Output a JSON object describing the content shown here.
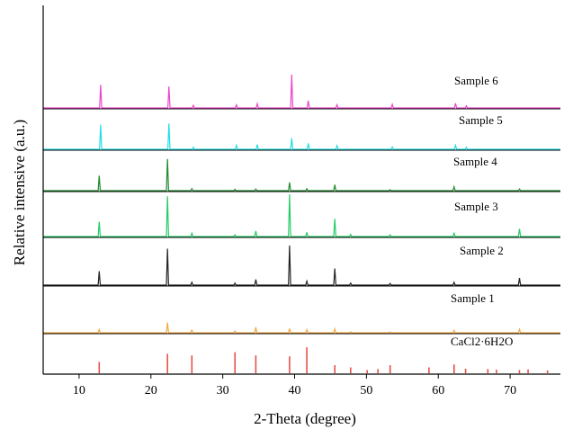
{
  "chart_data": {
    "type": "line",
    "title": "",
    "xlabel": "2-Theta (degree)",
    "ylabel": "Relative intensive (a.u.)",
    "xlim": [
      5,
      77
    ],
    "xticks": [
      10,
      20,
      30,
      40,
      50,
      60,
      70
    ],
    "grid": false,
    "style": "stacked offset diffraction patterns, spikes on flat baselines",
    "series": [
      {
        "name": "CaCl2·6H2O",
        "color": "#e8504a",
        "render": "sticks",
        "peaks": [
          [
            12.8,
            0.35
          ],
          [
            22.3,
            0.6
          ],
          [
            25.7,
            0.55
          ],
          [
            31.7,
            0.65
          ],
          [
            34.6,
            0.55
          ],
          [
            39.3,
            0.52
          ],
          [
            41.7,
            0.8
          ],
          [
            45.6,
            0.25
          ],
          [
            47.8,
            0.18
          ],
          [
            50.1,
            0.1
          ],
          [
            51.6,
            0.13
          ],
          [
            53.3,
            0.25
          ],
          [
            58.7,
            0.18
          ],
          [
            62.2,
            0.27
          ],
          [
            63.8,
            0.14
          ],
          [
            66.9,
            0.13
          ],
          [
            68.1,
            0.11
          ],
          [
            71.3,
            0.1
          ],
          [
            72.5,
            0.12
          ],
          [
            75.2,
            0.09
          ]
        ]
      },
      {
        "name": "Sample 1",
        "color": "#f5a742",
        "render": "trace",
        "peaks": [
          [
            12.8,
            0.2
          ],
          [
            22.3,
            0.6
          ],
          [
            25.7,
            0.15
          ],
          [
            31.7,
            0.1
          ],
          [
            34.6,
            0.32
          ],
          [
            39.3,
            0.25
          ],
          [
            41.7,
            0.18
          ],
          [
            45.6,
            0.22
          ],
          [
            47.8,
            0.06
          ],
          [
            53.3,
            0.05
          ],
          [
            62.2,
            0.14
          ],
          [
            71.3,
            0.2
          ]
        ]
      },
      {
        "name": "Sample 2",
        "color": "#222222",
        "render": "trace",
        "peaks": [
          [
            12.8,
            0.35
          ],
          [
            22.3,
            0.92
          ],
          [
            25.7,
            0.07
          ],
          [
            31.7,
            0.05
          ],
          [
            34.6,
            0.14
          ],
          [
            39.3,
            1.0
          ],
          [
            41.7,
            0.1
          ],
          [
            45.6,
            0.42
          ],
          [
            47.8,
            0.05
          ],
          [
            53.3,
            0.04
          ],
          [
            62.2,
            0.07
          ],
          [
            71.3,
            0.18
          ]
        ]
      },
      {
        "name": "Sample 3",
        "color": "#22cc66",
        "render": "trace",
        "peaks": [
          [
            12.8,
            0.35
          ],
          [
            22.3,
            0.95
          ],
          [
            25.7,
            0.08
          ],
          [
            31.7,
            0.04
          ],
          [
            34.6,
            0.13
          ],
          [
            39.3,
            1.0
          ],
          [
            41.7,
            0.1
          ],
          [
            45.6,
            0.42
          ],
          [
            47.8,
            0.05
          ],
          [
            53.3,
            0.04
          ],
          [
            62.2,
            0.08
          ],
          [
            71.3,
            0.18
          ]
        ]
      },
      {
        "name": "Sample 4",
        "color": "#1f8a2c",
        "render": "trace",
        "peaks": [
          [
            12.8,
            0.45
          ],
          [
            22.3,
            0.95
          ],
          [
            25.7,
            0.06
          ],
          [
            31.7,
            0.04
          ],
          [
            34.6,
            0.05
          ],
          [
            39.3,
            0.25
          ],
          [
            41.7,
            0.06
          ],
          [
            45.6,
            0.18
          ],
          [
            53.3,
            0.03
          ],
          [
            62.2,
            0.12
          ],
          [
            71.3,
            0.05
          ]
        ]
      },
      {
        "name": "Sample 5",
        "color": "#22dde6",
        "render": "trace",
        "peaks": [
          [
            13.0,
            0.62
          ],
          [
            22.5,
            0.65
          ],
          [
            25.9,
            0.05
          ],
          [
            31.9,
            0.1
          ],
          [
            34.8,
            0.12
          ],
          [
            39.6,
            0.28
          ],
          [
            41.9,
            0.15
          ],
          [
            45.9,
            0.09
          ],
          [
            53.6,
            0.06
          ],
          [
            62.4,
            0.1
          ],
          [
            63.9,
            0.05
          ]
        ]
      },
      {
        "name": "Sample 6",
        "color": "#ee44cc",
        "render": "trace",
        "peaks": [
          [
            13.0,
            0.45
          ],
          [
            22.5,
            0.42
          ],
          [
            25.9,
            0.05
          ],
          [
            31.9,
            0.06
          ],
          [
            34.8,
            0.08
          ],
          [
            39.6,
            0.65
          ],
          [
            41.9,
            0.14
          ],
          [
            45.9,
            0.06
          ],
          [
            53.6,
            0.07
          ],
          [
            62.4,
            0.09
          ],
          [
            63.9,
            0.04
          ]
        ]
      }
    ]
  }
}
